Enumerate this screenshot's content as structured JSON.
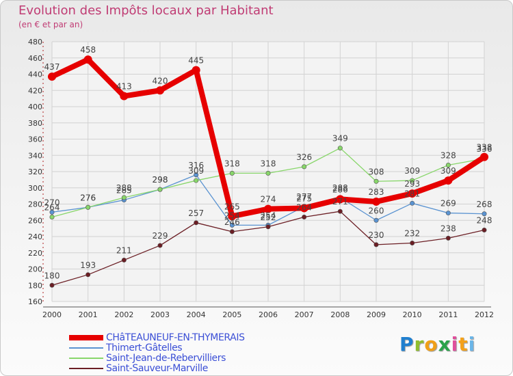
{
  "chart_data": {
    "type": "line",
    "title": "Evolution des Impôts locaux par Habitant",
    "subtitle": "(en € et par an)",
    "xlabel": "",
    "ylabel": "",
    "ylim": [
      160,
      480
    ],
    "ytick_step": 20,
    "grid": true,
    "legend_position": "bottom-left",
    "categories": [
      "2000",
      "2001",
      "2002",
      "2003",
      "2004",
      "2005",
      "2006",
      "2007",
      "2008",
      "2009",
      "2010",
      "2011",
      "2012"
    ],
    "series": [
      {
        "name": "CHâTEAUNEUF-EN-THYMERAIS",
        "color": "#e60000",
        "highlight": true,
        "values": [
          437,
          458,
          413,
          420,
          445,
          265,
          274,
          275,
          286,
          283,
          293,
          309,
          338
        ],
        "labels": [
          "437",
          "458",
          "413",
          "420",
          "445",
          "265",
          "274",
          "275",
          "286",
          "283",
          "293",
          "309",
          "338"
        ]
      },
      {
        "name": "Thimert-Gâtelles",
        "color": "#5a93d1",
        "highlight": false,
        "values": [
          270,
          276,
          285,
          298,
          316,
          254,
          254,
          277,
          288,
          260,
          281,
          269,
          268
        ],
        "labels": [
          "270",
          "276",
          "285",
          "298",
          "316",
          "254",
          "254",
          "277",
          "288",
          "260",
          "281",
          "269",
          "268"
        ]
      },
      {
        "name": "Saint-Jean-de-Rebervilliers",
        "color": "#88d66a",
        "highlight": false,
        "values": [
          264,
          276,
          288,
          298,
          309,
          318,
          318,
          326,
          349,
          308,
          309,
          328,
          336
        ],
        "labels": [
          "264",
          "276",
          "288",
          "298",
          "309",
          "318",
          "318",
          "326",
          "349",
          "308",
          "309",
          "328",
          "336"
        ]
      },
      {
        "name": "Saint-Sauveur-Marville",
        "color": "#6b1e24",
        "highlight": false,
        "values": [
          180,
          193,
          211,
          229,
          257,
          246,
          252,
          264,
          271,
          230,
          232,
          238,
          248
        ],
        "labels": [
          "180",
          "193",
          "211",
          "229",
          "257",
          "246",
          "252",
          "264",
          "271",
          "230",
          "232",
          "238",
          "248"
        ]
      }
    ]
  },
  "legend_text_color": "#3b4fd6",
  "brand": {
    "letters": [
      "P",
      "r",
      "o",
      "x",
      "i",
      "t",
      "i"
    ],
    "colors": [
      "#1f7fcf",
      "#8fbe2e",
      "#f0a017",
      "#2aa24a",
      "#e04f9c",
      "#f4a11a",
      "#6ab5e8"
    ]
  }
}
